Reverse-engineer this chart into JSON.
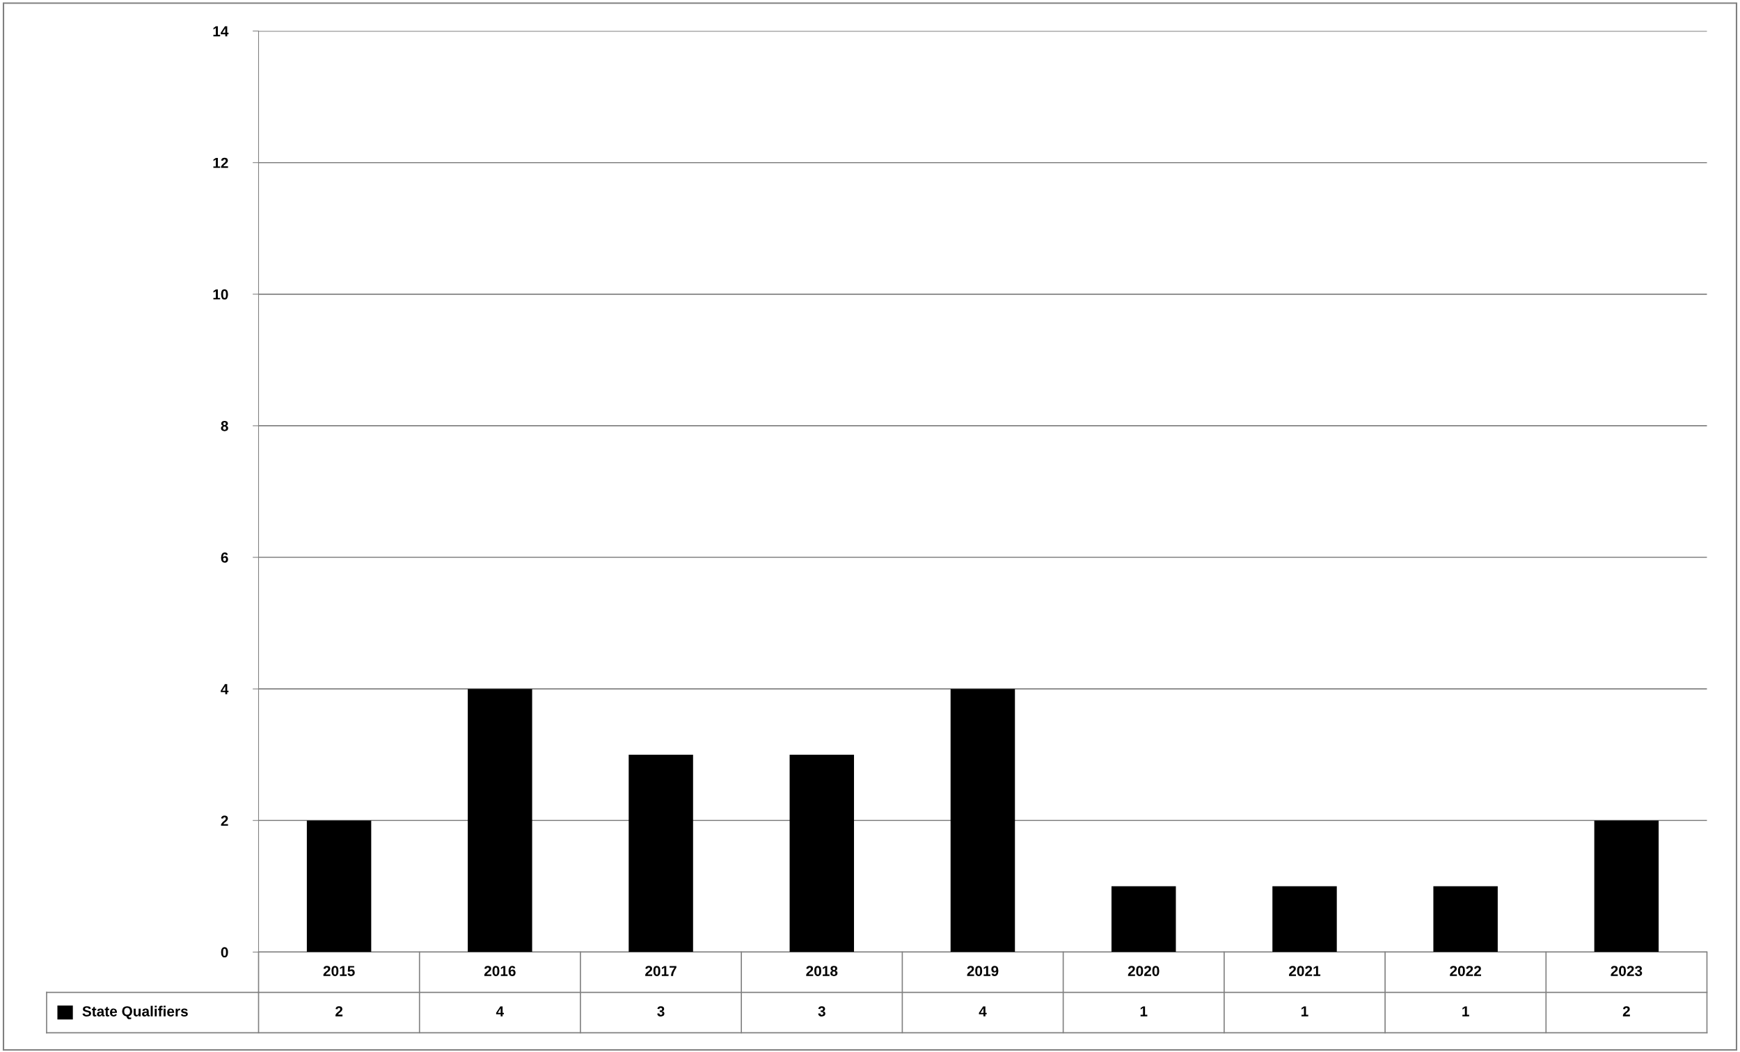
{
  "chart_data": {
    "type": "bar",
    "categories": [
      "2015",
      "2016",
      "2017",
      "2018",
      "2019",
      "2020",
      "2021",
      "2022",
      "2023"
    ],
    "series": [
      {
        "name": "State Qualifiers",
        "color": "#000000",
        "values": [
          2,
          4,
          3,
          3,
          4,
          1,
          1,
          1,
          2
        ]
      }
    ],
    "ylim": [
      0,
      14
    ],
    "yticks": [
      0,
      2,
      4,
      6,
      8,
      10,
      12,
      14
    ],
    "grid": "y",
    "data_labels": true,
    "legend": "bottom left"
  }
}
